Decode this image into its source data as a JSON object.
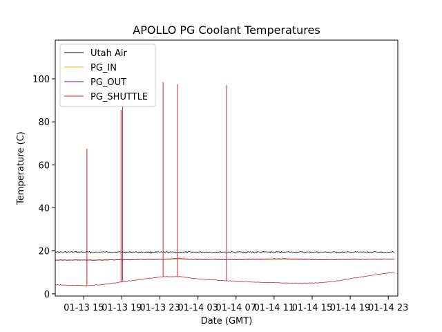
{
  "chart_data": {
    "type": "line",
    "title": "APOLLO PG Coolant Temperatures",
    "xlabel": "Date (GMT)",
    "ylabel": "Temperature (C)",
    "x_ticks": [
      "01-13 15",
      "01-13 19",
      "01-13 23",
      "01-14 03",
      "01-14 07",
      "01-14 11",
      "01-14 15",
      "01-14 19",
      "01-14 23"
    ],
    "x_range_hours": [
      12.0,
      24.0
    ],
    "y_ticks": [
      0,
      20,
      40,
      60,
      80,
      100
    ],
    "ylim": [
      -1,
      118
    ],
    "grid": false,
    "legend_position": "top-left",
    "series": [
      {
        "name": "Utah Air",
        "color": "#000000",
        "x": [
          "01-13 12:00",
          "01-13 18:00",
          "01-14 00:00",
          "01-14 06:00",
          "01-14 12:00",
          "01-14 18:00",
          "01-14 23:40"
        ],
        "y": [
          19.4,
          19.4,
          19.3,
          19.4,
          19.4,
          19.3,
          19.4
        ]
      },
      {
        "name": "PG_IN",
        "color": "#e6b800",
        "x": [
          "01-13 12:00",
          "01-13 18:00",
          "01-14 00:00",
          "01-14 06:00",
          "01-14 12:00",
          "01-14 18:00",
          "01-14 23:40"
        ],
        "y": [
          15.8,
          15.9,
          16.0,
          15.9,
          15.9,
          15.9,
          16.1
        ]
      },
      {
        "name": "PG_OUT",
        "color": "#800080",
        "x": [
          "01-13 12:00",
          "01-13 16:00",
          "01-13 20:00",
          "01-14 00:00",
          "01-14 01:00",
          "01-14 02:00",
          "01-14 06:00",
          "01-14 10:00",
          "01-14 12:00",
          "01-14 16:00",
          "01-14 20:00",
          "01-14 23:40"
        ],
        "y": [
          15.7,
          15.7,
          15.9,
          16.2,
          16.6,
          16.1,
          16.0,
          16.2,
          16.4,
          15.9,
          16.1,
          16.2
        ]
      },
      {
        "name": "PG_SHUTTLE",
        "color": "#cc2222",
        "x": [
          "01-13 12:00",
          "01-13 14:00",
          "01-13 15:30",
          "01-13 17:00",
          "01-13 19:00",
          "01-13 21:00",
          "01-13 23:00",
          "01-14 01:00",
          "01-14 03:00",
          "01-14 06:00",
          "01-14 10:00",
          "01-14 14:00",
          "01-14 16:00",
          "01-14 18:00",
          "01-14 20:00",
          "01-14 22:00",
          "01-14 23:20",
          "01-14 23:40"
        ],
        "y": [
          4.2,
          4.0,
          3.9,
          4.3,
          5.6,
          6.7,
          7.9,
          8.1,
          7.0,
          6.1,
          5.3,
          4.9,
          5.2,
          6.3,
          7.8,
          9.1,
          9.9,
          9.5
        ],
        "spikes": [
          {
            "x": "01-13 15:20",
            "y": 67.5
          },
          {
            "x": "01-13 18:55",
            "y": 85.5
          },
          {
            "x": "01-13 19:05",
            "y": 89.5
          },
          {
            "x": "01-13 23:20",
            "y": 98.5
          },
          {
            "x": "01-14 00:50",
            "y": 97.5
          },
          {
            "x": "01-14 06:00",
            "y": 97.0
          }
        ]
      }
    ]
  }
}
